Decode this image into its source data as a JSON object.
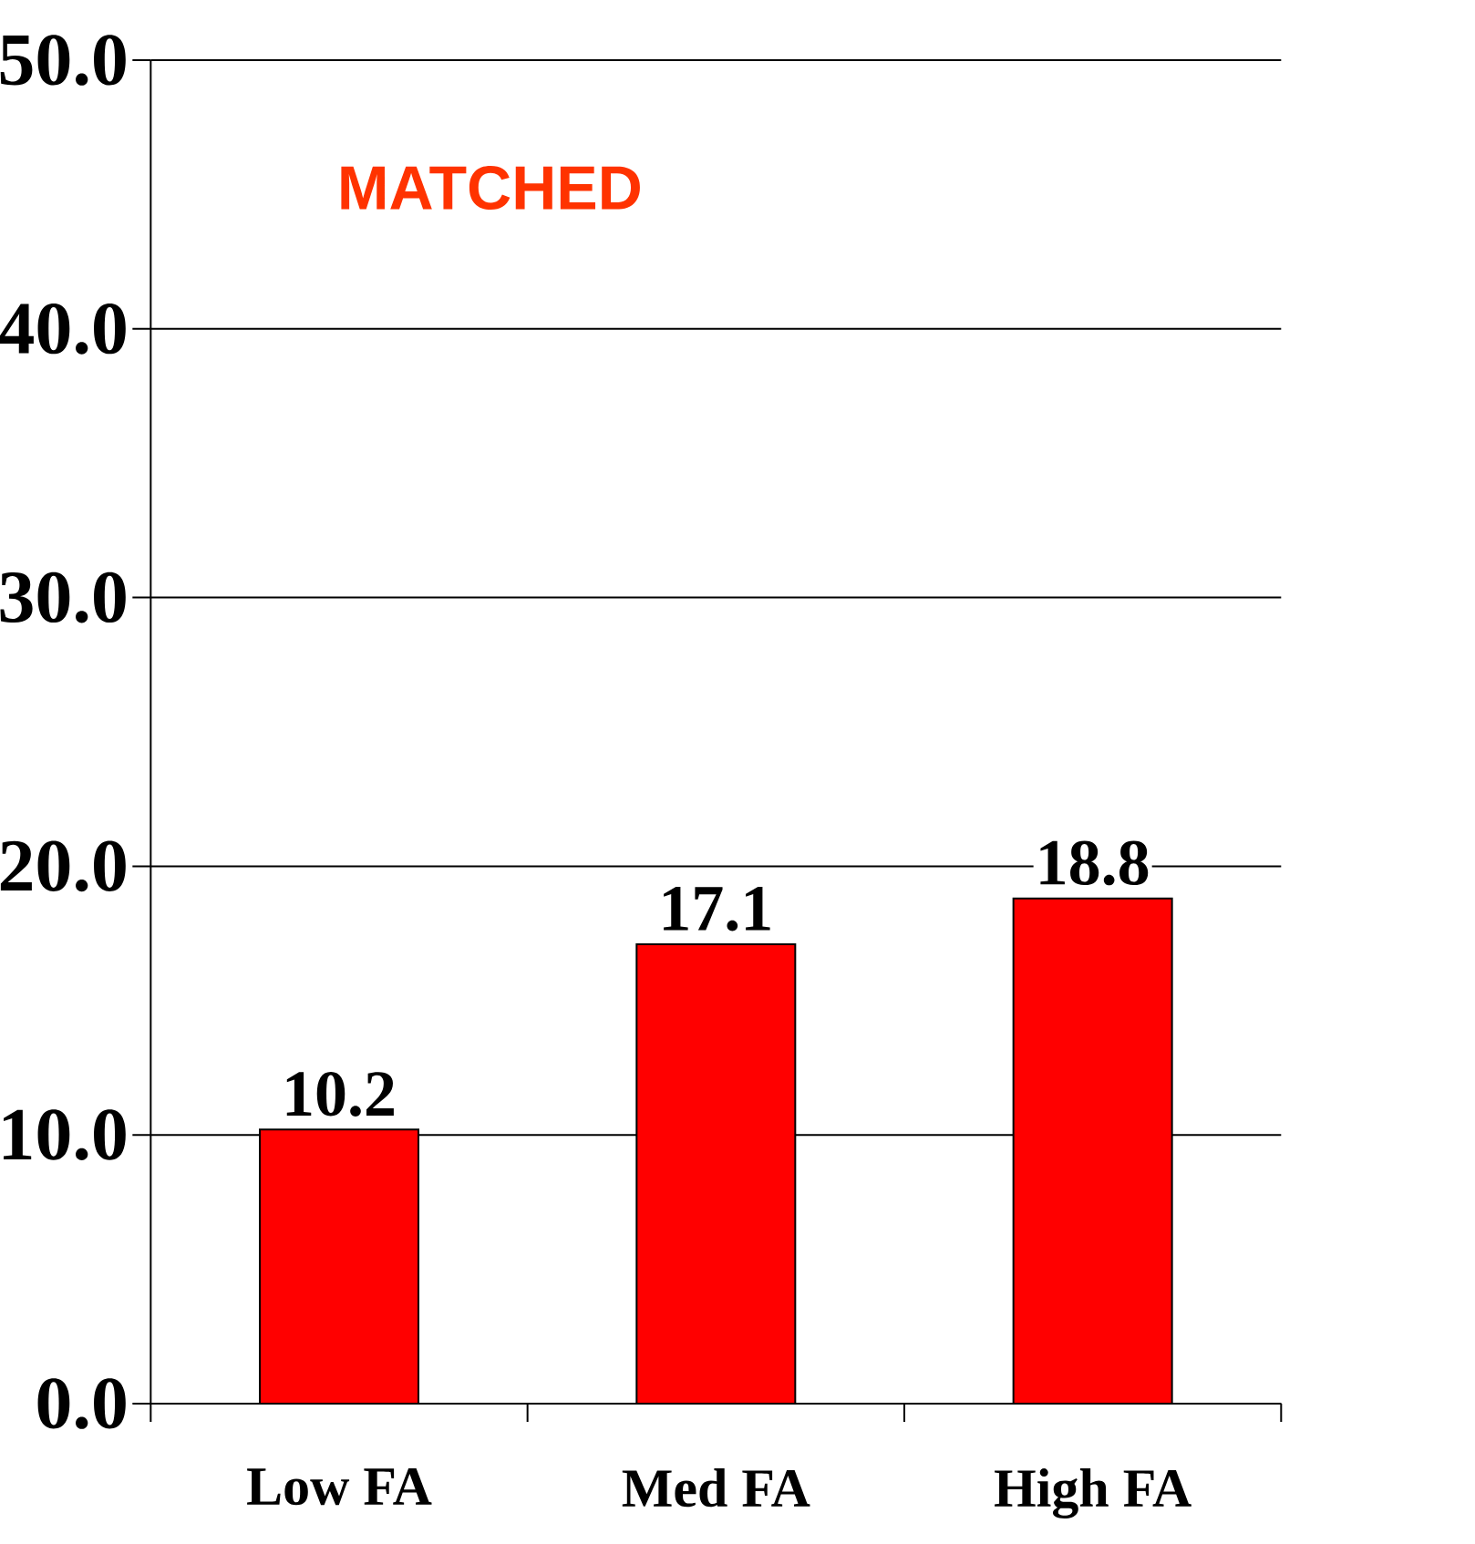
{
  "chart_data": {
    "type": "bar",
    "categories": [
      "Low FA",
      "Med FA",
      "High FA"
    ],
    "values": [
      10.2,
      17.1,
      18.8
    ],
    "color": "#ff0000",
    "ylim": [
      0,
      50
    ],
    "yticks": [
      {
        "value": 0,
        "label": "0.0"
      },
      {
        "value": 10,
        "label": "10.0"
      },
      {
        "value": 20,
        "label": "20.0"
      },
      {
        "value": 30,
        "label": "30.0"
      },
      {
        "value": 40,
        "label": "40.0"
      },
      {
        "value": 50,
        "label": "50.0"
      }
    ],
    "grid": "y",
    "data_labels": true,
    "annotations": [
      "MATCHED"
    ]
  }
}
